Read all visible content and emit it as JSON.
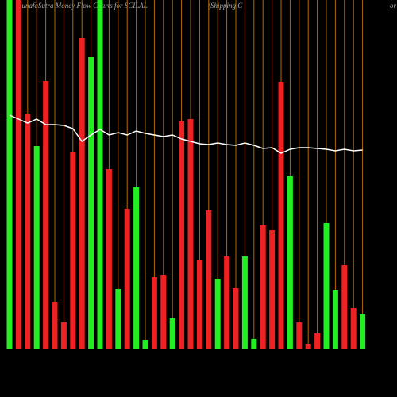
{
  "chart_data": {
    "type": "bar",
    "title": "MunafaSutra  Money Flow  Charts for SCILAL",
    "subtitle": "(Shipping C",
    "subtitle_tail": "or",
    "values": [
      440,
      440,
      297,
      256,
      338,
      60,
      34,
      248,
      392,
      368,
      440,
      227,
      76,
      177,
      204,
      12,
      91,
      94,
      39,
      287,
      290,
      112,
      175,
      89,
      117,
      77,
      117,
      13,
      156,
      150,
      337,
      218,
      34,
      7,
      20,
      159,
      75,
      106,
      52,
      44
    ],
    "colors": [
      "#22ee22",
      "#ee2222",
      "#ee2222",
      "#22ee22",
      "#ee2222",
      "#ee2222",
      "#ee2222",
      "#ee2222",
      "#ee2222",
      "#22ee22",
      "#22ee22",
      "#ee2222",
      "#22ee22",
      "#ee2222",
      "#22ee22",
      "#22ee22",
      "#ee2222",
      "#ee2222",
      "#22ee22",
      "#ee2222",
      "#ee2222",
      "#ee2222",
      "#ee2222",
      "#22ee22",
      "#ee2222",
      "#ee2222",
      "#22ee22",
      "#22ee22",
      "#ee2222",
      "#ee2222",
      "#ee2222",
      "#22ee22",
      "#ee2222",
      "#ee2222",
      "#ee2222",
      "#22ee22",
      "#22ee22",
      "#ee2222",
      "#ee2222",
      "#22ee22"
    ],
    "line": {
      "color": "#ffffff",
      "values": [
        295,
        290,
        285,
        290,
        283,
        283,
        282,
        278,
        262,
        270,
        277,
        270,
        273,
        270,
        275,
        272,
        270,
        268,
        270,
        265,
        262,
        259,
        258,
        260,
        258,
        257,
        260,
        257,
        253,
        254,
        247,
        252,
        254,
        254,
        253,
        252,
        250,
        252,
        250,
        251
      ]
    },
    "grid_color": "#b36a00",
    "ylim": [
      0,
      440
    ]
  }
}
